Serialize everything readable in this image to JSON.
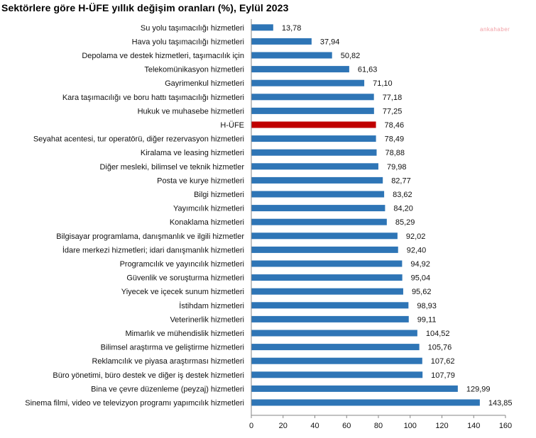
{
  "chart_data": {
    "type": "bar",
    "orientation": "horizontal",
    "title": "Sektörlere göre H-ÜFE yıllık değişim oranları (%), Eylül 2023",
    "xlabel": "",
    "ylabel": "",
    "xlim": [
      0,
      160
    ],
    "xticks": [
      "0",
      "20",
      "40",
      "60",
      "80",
      "100",
      "120",
      "140",
      "160"
    ],
    "grid": false,
    "highlight_category": "H-ÜFE",
    "colors": {
      "bar": "#2e75b6",
      "highlight": "#c00000"
    },
    "categories": [
      "Su yolu taşımacılığı hizmetleri",
      "Hava yolu taşımacılığı hizmetleri",
      "Depolama ve destek hizmetleri, taşımacılık için",
      "Telekomünikasyon hizmetleri",
      "Gayrimenkul hizmetleri",
      "Kara taşımacılığı ve boru hattı taşımacılığı hizmetleri",
      "Hukuk ve muhasebe hizmetleri",
      "H-ÜFE",
      "Seyahat acentesi, tur operatörü, diğer rezervasyon hizmetleri",
      "Kiralama ve leasing hizmetleri",
      "Diğer mesleki, bilimsel ve teknik hizmetler",
      "Posta ve kurye hizmetleri",
      "Bilgi hizmetleri",
      "Yayımcılık hizmetleri",
      "Konaklama hizmetleri",
      "Bilgisayar programlama, danışmanlık ve ilgili hizmetler",
      "İdare merkezi hizmetleri; idari danışmanlık hizmetleri",
      "Programcılık ve yayıncılık hizmetleri",
      "Güvenlik ve soruşturma hizmetleri",
      "Yiyecek ve içecek sunum hizmetleri",
      "İstihdam hizmetleri",
      "Veterinerlik hizmetleri",
      "Mimarlık ve mühendislik hizmetleri",
      "Bilimsel araştırma ve geliştirme hizmetleri",
      "Reklamcılık ve piyasa araştırması hizmetleri",
      "Büro yönetimi, büro destek ve diğer iş destek hizmetleri",
      "Bina ve çevre düzenleme (peyzaj) hizmetleri",
      "Sinema filmi, video ve televizyon programı yapımcılık hizmetleri"
    ],
    "values": [
      13.78,
      37.94,
      50.82,
      61.63,
      71.1,
      77.18,
      77.25,
      78.46,
      78.49,
      78.88,
      79.98,
      82.77,
      83.62,
      84.2,
      85.29,
      92.02,
      92.4,
      94.92,
      95.04,
      95.62,
      98.93,
      99.11,
      104.52,
      105.76,
      107.62,
      107.79,
      129.99,
      143.85
    ],
    "value_labels": [
      "13,78",
      "37,94",
      "50,82",
      "61,63",
      "71,10",
      "77,18",
      "77,25",
      "78,46",
      "78,49",
      "78,88",
      "79,98",
      "82,77",
      "83,62",
      "84,20",
      "85,29",
      "92,02",
      "92,40",
      "94,92",
      "95,04",
      "95,62",
      "98,93",
      "99,11",
      "104,52",
      "105,76",
      "107,62",
      "107,79",
      "129,99",
      "143,85"
    ]
  },
  "watermark": {
    "text": "ankahaber"
  }
}
